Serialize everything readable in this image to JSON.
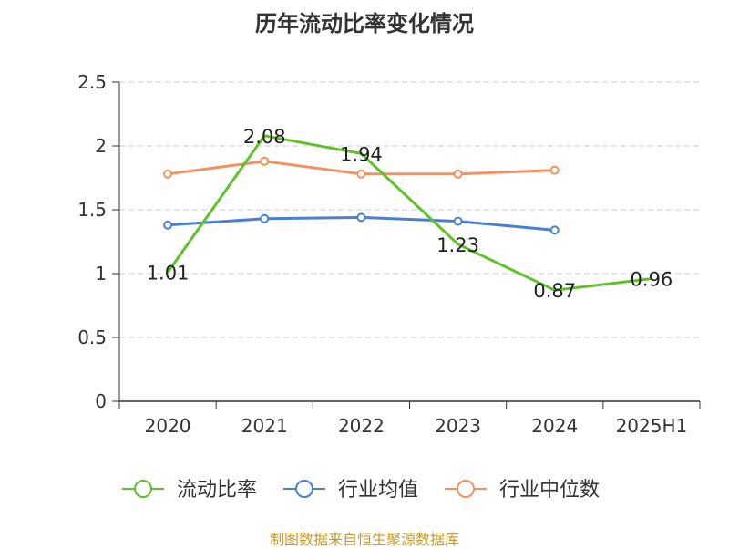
{
  "chart_data": {
    "type": "line",
    "title": "历年流动比率变化情况",
    "categories": [
      "2020",
      "2021",
      "2022",
      "2023",
      "2024",
      "2025H1"
    ],
    "y_ticks": [
      "0",
      "0.5",
      "1",
      "1.5",
      "2",
      "2.5"
    ],
    "ylim": [
      0,
      2.5
    ],
    "grid": true,
    "legend_position": "bottom",
    "series": [
      {
        "name": "流动比率",
        "color": "#5fc22a",
        "values": [
          1.01,
          2.08,
          1.94,
          1.23,
          0.87,
          0.96
        ],
        "labels": [
          "1.01",
          "2.08",
          "1.94",
          "1.23",
          "0.87",
          "0.96"
        ]
      },
      {
        "name": "行业均值",
        "color": "#4a7fd8",
        "values": [
          1.38,
          1.43,
          1.44,
          1.41,
          1.34,
          null
        ]
      },
      {
        "name": "行业中位数",
        "color": "#f49160",
        "values": [
          1.78,
          1.88,
          1.78,
          1.78,
          1.81,
          null
        ]
      }
    ]
  },
  "footer": {
    "source": "制图数据来自恒生聚源数据库"
  }
}
